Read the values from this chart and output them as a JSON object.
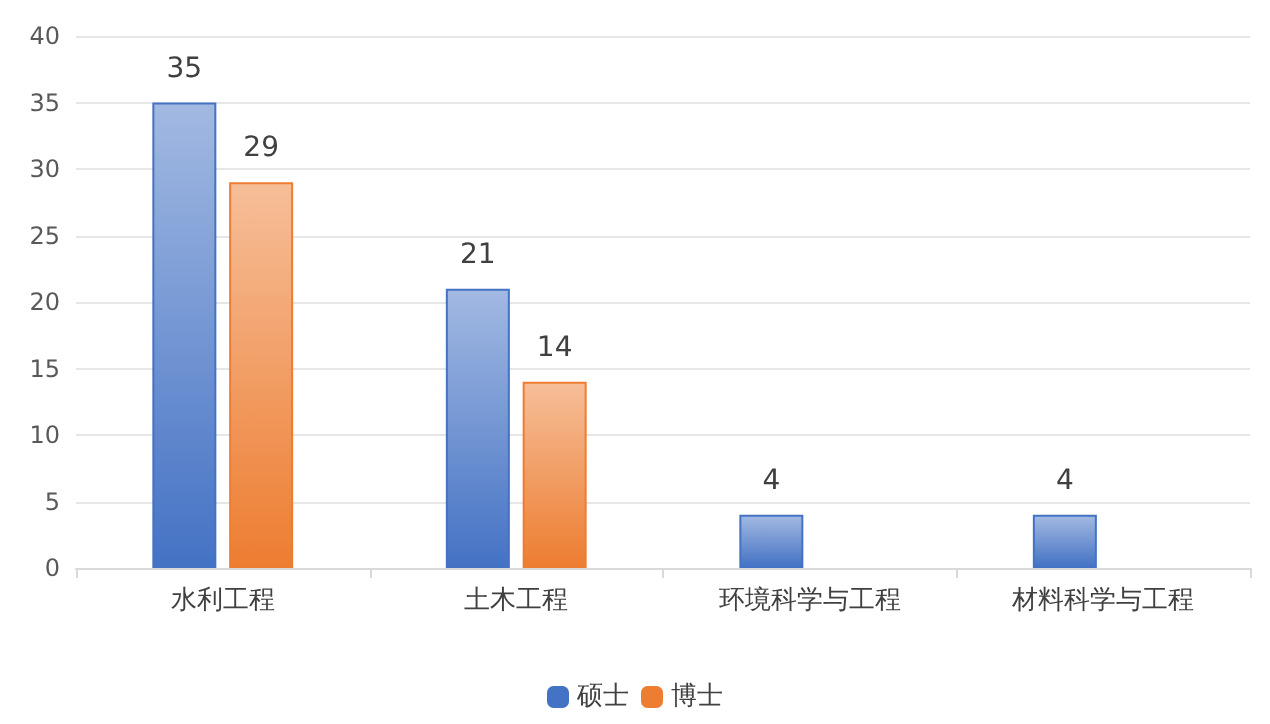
{
  "chart_data": {
    "type": "bar",
    "categories": [
      "水利工程",
      "土木工程",
      "环境科学与工程",
      "材料科学与工程"
    ],
    "series": [
      {
        "name": "硕士",
        "color": "#4472c4",
        "values": [
          35,
          21,
          4,
          4
        ]
      },
      {
        "name": "博士",
        "color": "#ed7d31",
        "values": [
          29,
          14,
          null,
          null
        ]
      }
    ],
    "ylim": [
      0,
      40
    ],
    "yticks": [
      0,
      5,
      10,
      15,
      20,
      25,
      30,
      35,
      40
    ],
    "grid": "y",
    "legend": "bottom",
    "data_labels": true
  }
}
